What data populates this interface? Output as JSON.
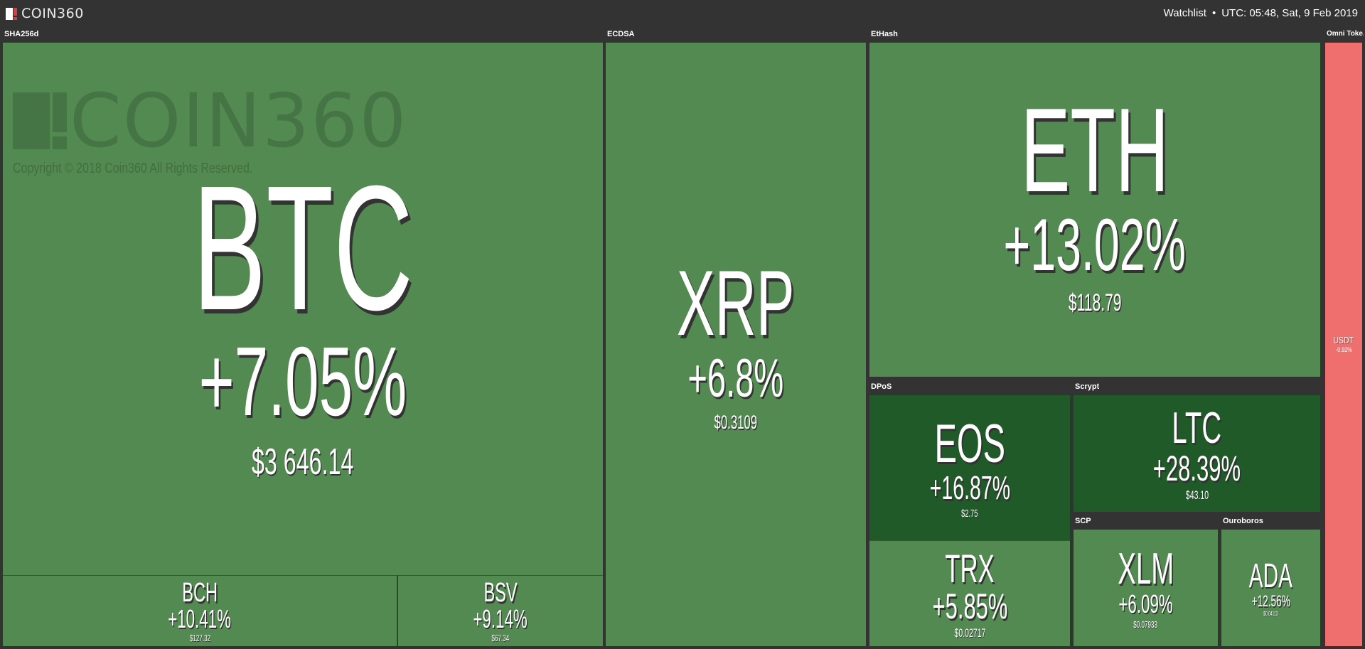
{
  "app": {
    "logo_text": "COIN360",
    "watchlist_label": "Watchlist",
    "separator": "•",
    "time_label": "UTC: 05:48, Sat, 9 Feb 2019"
  },
  "watermark": {
    "logo_text": "COIN360",
    "copyright": "Copyright © 2018 Coin360 All Rights Reserved."
  },
  "sectors": {
    "sha256d": "SHA256d",
    "ecdsa": "ECDSA",
    "ethash": "EtHash",
    "omni": "Omni Toke...",
    "dpos": "DPoS",
    "scrypt": "Scrypt",
    "scp": "SCP",
    "ouroboros": "Ouroboros"
  },
  "coins": {
    "btc": {
      "symbol": "BTC",
      "change": "+7.05%",
      "price": "$3 646.14"
    },
    "bch": {
      "symbol": "BCH",
      "change": "+10.41%",
      "price": "$127.32"
    },
    "bsv": {
      "symbol": "BSV",
      "change": "+9.14%",
      "price": "$67.34"
    },
    "xrp": {
      "symbol": "XRP",
      "change": "+6.8%",
      "price": "$0.3109"
    },
    "eth": {
      "symbol": "ETH",
      "change": "+13.02%",
      "price": "$118.79"
    },
    "eos": {
      "symbol": "EOS",
      "change": "+16.87%",
      "price": "$2.75"
    },
    "trx": {
      "symbol": "TRX",
      "change": "+5.85%",
      "price": "$0.02717"
    },
    "ltc": {
      "symbol": "LTC",
      "change": "+28.39%",
      "price": "$43.10"
    },
    "xlm": {
      "symbol": "XLM",
      "change": "+6.09%",
      "price": "$0.07933"
    },
    "ada": {
      "symbol": "ADA",
      "change": "+12.56%",
      "price": "$0.04113"
    },
    "usdt": {
      "symbol": "USDT",
      "change": "-0.92%"
    }
  },
  "colors": {
    "background": "#333333",
    "up": "#538a51",
    "strong_up": "#1f5a28",
    "down": "#ef6e6e"
  }
}
